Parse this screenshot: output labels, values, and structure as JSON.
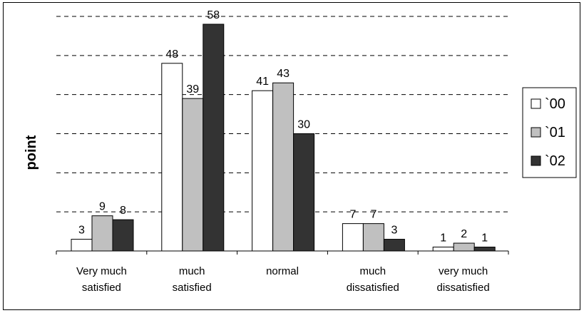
{
  "chart_data": {
    "type": "bar",
    "title": "",
    "xlabel": "",
    "ylabel": "point",
    "ylim": [
      0,
      60
    ],
    "grid": true,
    "legend_position": "right",
    "categories": [
      [
        "Very much",
        "satisfied"
      ],
      [
        "much",
        "satisfied"
      ],
      [
        "normal"
      ],
      [
        "much",
        "dissatisfied"
      ],
      [
        "very much",
        "dissatisfied"
      ]
    ],
    "series": [
      {
        "name": "`00",
        "color": "#ffffff",
        "values": [
          3,
          48,
          41,
          7,
          1
        ]
      },
      {
        "name": "`01",
        "color": "#c0c0c0",
        "values": [
          9,
          39,
          43,
          7,
          2
        ]
      },
      {
        "name": "`02",
        "color": "#333333",
        "values": [
          8,
          58,
          30,
          3,
          1
        ]
      }
    ]
  }
}
